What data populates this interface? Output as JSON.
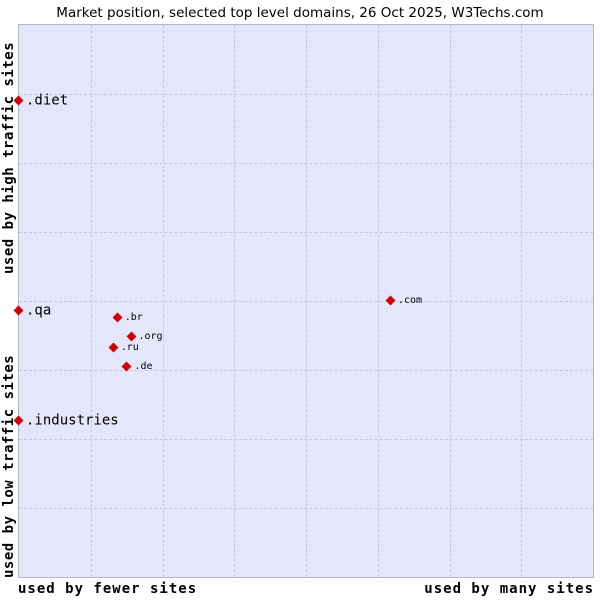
{
  "title": "Market position, selected top level domains, 26 Oct 2025, W3Techs.com",
  "axes": {
    "y_top": "used by high traffic sites",
    "y_bottom": "used by low traffic sites",
    "x_left": "used by fewer sites",
    "x_right": "used by many sites"
  },
  "colors": {
    "marker": "#d40000",
    "plot_background": "#e6e6fb",
    "grid_line": "#c6c6e2",
    "plot_border": "#b4b4cc"
  },
  "chart_data": {
    "type": "scatter",
    "title": "Market position, selected top level domains, 26 Oct 2025, W3Techs.com",
    "x_axis_labels": [
      "used by fewer sites",
      "used by many sites"
    ],
    "y_axis_labels": [
      "used by high traffic sites",
      "used by low traffic sites"
    ],
    "grid": "dashed, 8x8 cells",
    "marker_shape": "diamond",
    "points": [
      {
        "label": ".diet",
        "x_pct": 0,
        "y_pct": 13.7,
        "emphasis": true
      },
      {
        "label": ".qa",
        "x_pct": 0,
        "y_pct": 51.8,
        "emphasis": true
      },
      {
        "label": ".industries",
        "x_pct": 0,
        "y_pct": 71.8,
        "emphasis": true
      },
      {
        "label": ".br",
        "x_pct": 17.2,
        "y_pct": 53.1,
        "emphasis": false
      },
      {
        "label": ".org",
        "x_pct": 19.6,
        "y_pct": 56.5,
        "emphasis": false
      },
      {
        "label": ".ru",
        "x_pct": 16.5,
        "y_pct": 58.5,
        "emphasis": false
      },
      {
        "label": ".de",
        "x_pct": 18.9,
        "y_pct": 61.9,
        "emphasis": false
      },
      {
        "label": ".com",
        "x_pct": 64.8,
        "y_pct": 50.0,
        "emphasis": false
      }
    ]
  }
}
